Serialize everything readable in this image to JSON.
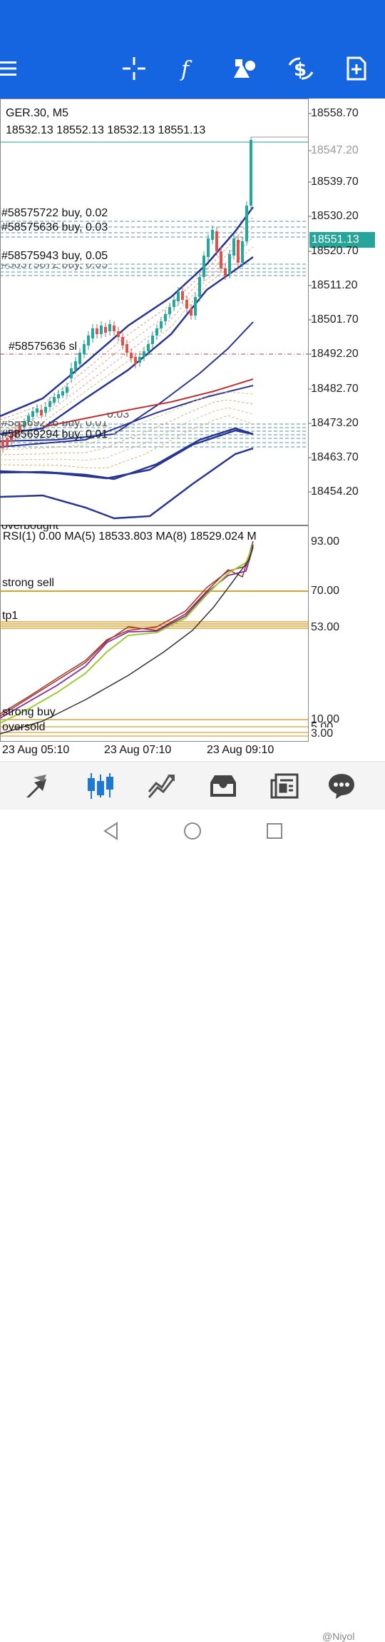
{
  "toolbar": {
    "menu_icon": "hamburger-icon",
    "icons": [
      "crosshair-icon",
      "function-icon",
      "objects-icon",
      "trade-icon",
      "new-order-icon"
    ]
  },
  "chart": {
    "symbol": "GER.30, M5",
    "ohlc": "18532.13 18552.13 18532.13 18551.13",
    "current_price": "18551.13",
    "price_axis": [
      "18558.70",
      "18547.20",
      "18539.70",
      "18530.20",
      "18520.70",
      "18511.20",
      "18501.70",
      "18492.20",
      "18482.70",
      "18473.20",
      "18463.70",
      "18454.20"
    ],
    "orders": [
      "#58575722 buy, 0.02",
      "#58575636 buy, 0.03",
      "#58575943 buy, 0.05",
      "#58575872 buy, 0.05",
      "#58575636 sl",
      "#58569294 buy, 0.01",
      "#58569276 buy, 0.01",
      "0.03"
    ]
  },
  "indicator": {
    "header": "RSI(1) 0.00 MA(5) 18533.803 MA(8) 18529.024 M",
    "overbought": "overbought",
    "levels": [
      {
        "label": "strong sell",
        "value": "70.00"
      },
      {
        "label": "tp1",
        "value": "53.00"
      },
      {
        "label": "strong buy",
        "value": "10.00"
      },
      {
        "label": "oversold",
        "value": "3.00"
      }
    ],
    "max_value": "93.00",
    "level_5": "5.00"
  },
  "time_axis": [
    "23 Aug 05:10",
    "23 Aug 07:10",
    "23 Aug 09:10"
  ],
  "bottom_nav": [
    "quotes-icon",
    "chart-icon",
    "trade-icon",
    "history-icon",
    "messages-icon",
    "news-icon",
    "chat-icon"
  ],
  "watermark": "@Niyol",
  "colors": {
    "accent": "#1565e0",
    "bull": "#26a69a",
    "bear": "#d9534f",
    "band": "#283593",
    "level": "#e0a030"
  }
}
